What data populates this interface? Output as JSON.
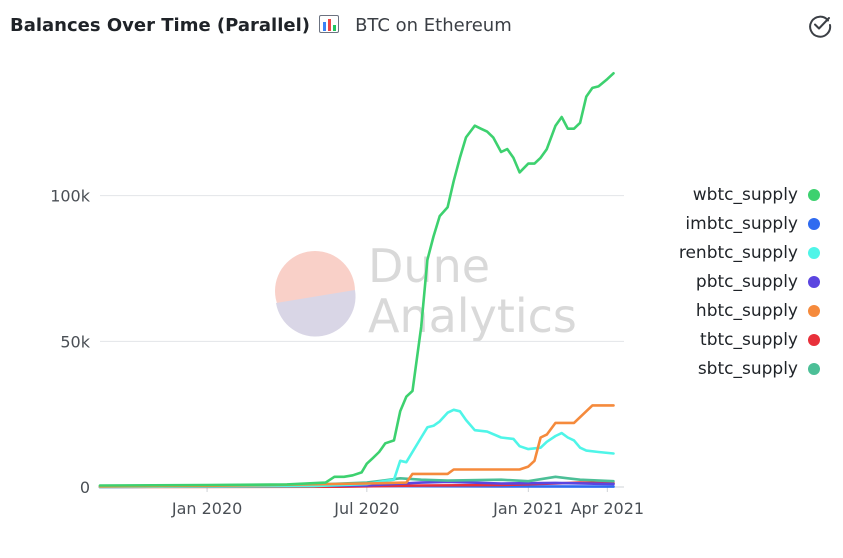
{
  "header": {
    "title": "Balances Over Time (Parallel)",
    "subtitle": "BTC on Ethereum"
  },
  "watermark": {
    "line1": "Dune",
    "line2": "Analytics"
  },
  "chart_data": {
    "type": "line",
    "title": "Balances Over Time (Parallel)",
    "xlabel": "",
    "ylabel": "",
    "xlim": [
      "2019-09-01",
      "2021-04-20"
    ],
    "ylim": [
      0,
      150000
    ],
    "y_ticks": [
      {
        "value": 0,
        "label": "0"
      },
      {
        "value": 50000,
        "label": "50k"
      },
      {
        "value": 100000,
        "label": "100k"
      }
    ],
    "x_ticks": [
      {
        "value": "2020-01-01",
        "label": "Jan 2020"
      },
      {
        "value": "2020-07-01",
        "label": "Jul 2020"
      },
      {
        "value": "2021-01-01",
        "label": "Jan 2021"
      },
      {
        "value": "2021-04-01",
        "label": "Apr 2021"
      }
    ],
    "grid": true,
    "legend_position": "right",
    "series": [
      {
        "name": "wbtc_supply",
        "color": "#3dd16f",
        "points": [
          [
            "2019-09-01",
            500
          ],
          [
            "2020-01-01",
            700
          ],
          [
            "2020-04-01",
            900
          ],
          [
            "2020-05-15",
            1500
          ],
          [
            "2020-05-25",
            3500
          ],
          [
            "2020-06-05",
            3500
          ],
          [
            "2020-06-15",
            4000
          ],
          [
            "2020-06-25",
            5000
          ],
          [
            "2020-07-01",
            8000
          ],
          [
            "2020-07-08",
            10000
          ],
          [
            "2020-07-15",
            12000
          ],
          [
            "2020-07-22",
            15000
          ],
          [
            "2020-08-01",
            16000
          ],
          [
            "2020-08-08",
            26000
          ],
          [
            "2020-08-15",
            31000
          ],
          [
            "2020-08-22",
            33000
          ],
          [
            "2020-09-01",
            55000
          ],
          [
            "2020-09-08",
            78000
          ],
          [
            "2020-09-15",
            86000
          ],
          [
            "2020-09-22",
            93000
          ],
          [
            "2020-10-01",
            96000
          ],
          [
            "2020-10-08",
            105000
          ],
          [
            "2020-10-15",
            113000
          ],
          [
            "2020-10-22",
            120000
          ],
          [
            "2020-11-01",
            124000
          ],
          [
            "2020-11-08",
            123000
          ],
          [
            "2020-11-15",
            122000
          ],
          [
            "2020-11-22",
            120000
          ],
          [
            "2020-12-01",
            115000
          ],
          [
            "2020-12-08",
            116000
          ],
          [
            "2020-12-15",
            113000
          ],
          [
            "2020-12-22",
            108000
          ],
          [
            "2021-01-01",
            111000
          ],
          [
            "2021-01-08",
            111000
          ],
          [
            "2021-01-15",
            113000
          ],
          [
            "2021-01-22",
            116000
          ],
          [
            "2021-02-01",
            124000
          ],
          [
            "2021-02-08",
            127000
          ],
          [
            "2021-02-15",
            123000
          ],
          [
            "2021-02-22",
            123000
          ],
          [
            "2021-03-01",
            125000
          ],
          [
            "2021-03-08",
            134000
          ],
          [
            "2021-03-15",
            137000
          ],
          [
            "2021-03-22",
            137500
          ],
          [
            "2021-04-01",
            140000
          ],
          [
            "2021-04-08",
            142000
          ]
        ]
      },
      {
        "name": "imbtc_supply",
        "color": "#2f6bf0",
        "points": [
          [
            "2019-09-01",
            200
          ],
          [
            "2020-03-01",
            500
          ],
          [
            "2020-07-01",
            300
          ],
          [
            "2020-12-01",
            200
          ],
          [
            "2021-04-08",
            150
          ]
        ]
      },
      {
        "name": "renbtc_supply",
        "color": "#4ff5e8",
        "points": [
          [
            "2019-09-01",
            0
          ],
          [
            "2020-05-01",
            300
          ],
          [
            "2020-07-01",
            1000
          ],
          [
            "2020-07-20",
            2000
          ],
          [
            "2020-08-01",
            2500
          ],
          [
            "2020-08-08",
            9000
          ],
          [
            "2020-08-15",
            8500
          ],
          [
            "2020-09-01",
            17000
          ],
          [
            "2020-09-08",
            20500
          ],
          [
            "2020-09-15",
            21000
          ],
          [
            "2020-09-22",
            22500
          ],
          [
            "2020-10-01",
            25500
          ],
          [
            "2020-10-08",
            26500
          ],
          [
            "2020-10-15",
            26000
          ],
          [
            "2020-10-22",
            23000
          ],
          [
            "2020-11-01",
            19500
          ],
          [
            "2020-11-15",
            19000
          ],
          [
            "2020-12-01",
            17000
          ],
          [
            "2020-12-15",
            16500
          ],
          [
            "2020-12-22",
            14000
          ],
          [
            "2021-01-01",
            13000
          ],
          [
            "2021-01-15",
            13500
          ],
          [
            "2021-01-22",
            15500
          ],
          [
            "2021-02-01",
            17500
          ],
          [
            "2021-02-08",
            18500
          ],
          [
            "2021-02-15",
            17000
          ],
          [
            "2021-02-22",
            16000
          ],
          [
            "2021-03-01",
            13500
          ],
          [
            "2021-03-08",
            12500
          ],
          [
            "2021-03-22",
            12000
          ],
          [
            "2021-04-08",
            11500
          ]
        ]
      },
      {
        "name": "pbtc_supply",
        "color": "#5b45e0",
        "points": [
          [
            "2019-09-01",
            0
          ],
          [
            "2020-07-01",
            500
          ],
          [
            "2020-09-01",
            1500
          ],
          [
            "2020-10-01",
            1800
          ],
          [
            "2020-12-01",
            1200
          ],
          [
            "2021-02-01",
            1400
          ],
          [
            "2021-04-08",
            1000
          ]
        ]
      },
      {
        "name": "hbtc_supply",
        "color": "#f58a3c",
        "points": [
          [
            "2019-09-01",
            200
          ],
          [
            "2020-01-01",
            400
          ],
          [
            "2020-04-01",
            800
          ],
          [
            "2020-07-01",
            1200
          ],
          [
            "2020-08-15",
            1500
          ],
          [
            "2020-08-22",
            4500
          ],
          [
            "2020-10-01",
            4500
          ],
          [
            "2020-10-08",
            6000
          ],
          [
            "2020-12-22",
            6000
          ],
          [
            "2021-01-01",
            7000
          ],
          [
            "2021-01-08",
            9000
          ],
          [
            "2021-01-15",
            17000
          ],
          [
            "2021-01-22",
            18000
          ],
          [
            "2021-02-01",
            22000
          ],
          [
            "2021-02-22",
            22000
          ],
          [
            "2021-03-15",
            28000
          ],
          [
            "2021-04-08",
            28000
          ]
        ]
      },
      {
        "name": "tbtc_supply",
        "color": "#e8303a",
        "points": [
          [
            "2019-09-01",
            0
          ],
          [
            "2020-06-01",
            100
          ],
          [
            "2020-09-01",
            500
          ],
          [
            "2020-12-01",
            700
          ],
          [
            "2021-02-01",
            1200
          ],
          [
            "2021-03-01",
            1500
          ],
          [
            "2021-04-08",
            1300
          ]
        ]
      },
      {
        "name": "sbtc_supply",
        "color": "#4cbf97",
        "points": [
          [
            "2019-09-01",
            300
          ],
          [
            "2020-05-01",
            800
          ],
          [
            "2020-07-01",
            1500
          ],
          [
            "2020-08-08",
            3000
          ],
          [
            "2020-09-01",
            2500
          ],
          [
            "2020-10-01",
            2200
          ],
          [
            "2020-12-01",
            2500
          ],
          [
            "2021-01-01",
            2000
          ],
          [
            "2021-02-01",
            3500
          ],
          [
            "2021-02-15",
            3000
          ],
          [
            "2021-03-01",
            2500
          ],
          [
            "2021-04-08",
            2000
          ]
        ]
      }
    ]
  }
}
